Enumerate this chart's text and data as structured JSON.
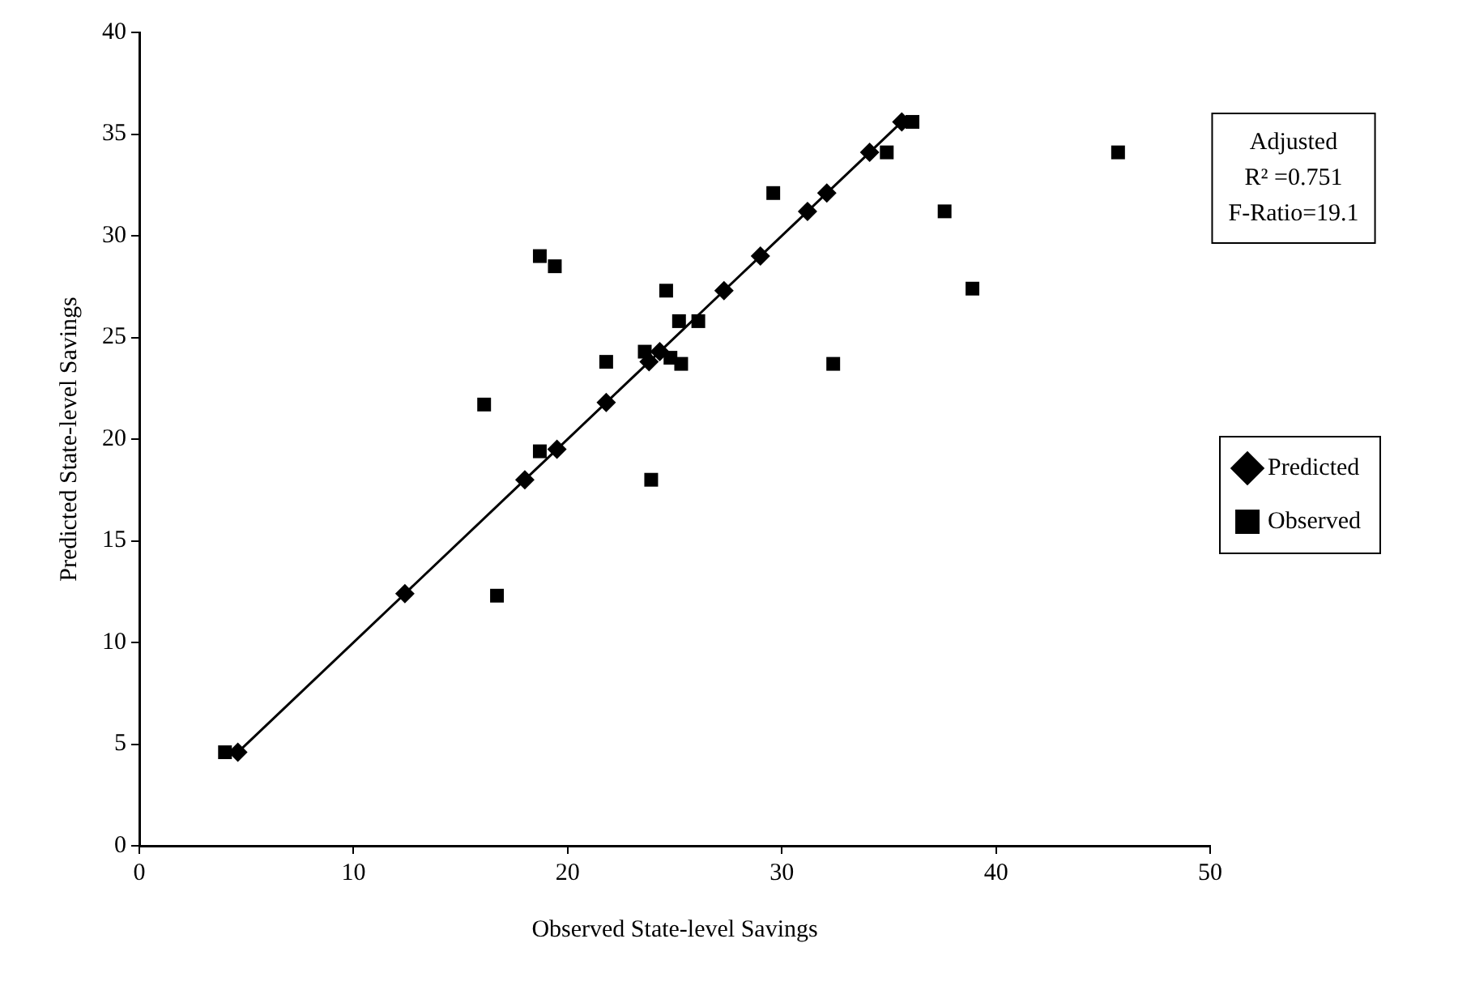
{
  "chart_data": {
    "type": "scatter",
    "xlabel": "Observed State-level Savings",
    "ylabel": "Predicted State-level Savings",
    "xlim": [
      0,
      50
    ],
    "xticks": [
      0,
      10,
      20,
      30,
      40,
      50
    ],
    "ylim": [
      0,
      40
    ],
    "yticks": [
      0,
      5,
      10,
      15,
      20,
      25,
      30,
      35,
      40
    ],
    "grid": false,
    "legend": "right",
    "annotations": [
      "Adjusted",
      "R² =0.751",
      "F-Ratio=19.1"
    ],
    "series": [
      {
        "name": "Predicted",
        "type": "line",
        "marker": "diamond",
        "line_style": "solid",
        "color": "#000000",
        "x": [
          4.6,
          12.4,
          18.0,
          19.5,
          21.8,
          23.8,
          24.3,
          27.3,
          29.0,
          31.2,
          32.1,
          34.1,
          35.6
        ],
        "values": [
          4.6,
          12.4,
          18.0,
          19.5,
          21.8,
          23.8,
          24.3,
          27.3,
          29.0,
          31.2,
          32.1,
          34.1,
          35.6
        ]
      },
      {
        "name": "Observed",
        "type": "scatter",
        "marker": "square",
        "color": "#000000",
        "x": [
          4.0,
          16.7,
          16.1,
          18.7,
          23.9,
          21.8,
          18.7,
          19.4,
          23.6,
          24.8,
          25.3,
          24.6,
          25.2,
          26.1,
          29.6,
          32.4,
          34.9,
          36.1,
          37.6,
          38.9,
          45.7
        ],
        "values": [
          4.6,
          12.3,
          21.7,
          19.4,
          18.0,
          23.8,
          29.0,
          28.5,
          24.3,
          24.0,
          23.7,
          27.3,
          25.8,
          25.8,
          32.1,
          23.7,
          34.1,
          35.6,
          31.2,
          27.4,
          34.1
        ]
      }
    ]
  }
}
